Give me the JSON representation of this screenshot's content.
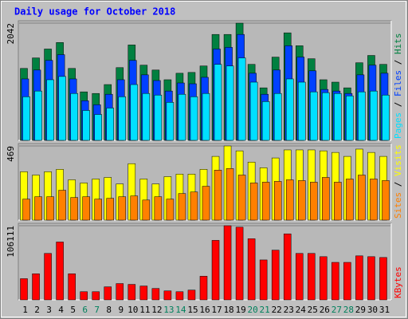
{
  "title": "Daily usage for October 2018",
  "chart_data": [
    {
      "type": "bar",
      "ylim": [
        0,
        2042
      ],
      "yticks": [
        2042
      ],
      "grid": true,
      "series": [
        {
          "name": "Hits",
          "color": "#008040",
          "values": [
            1253,
            1436,
            1591,
            1704,
            1253,
            845,
            817,
            972,
            1267,
            1662,
            1310,
            1225,
            1056,
            1169,
            1183,
            1296,
            1845,
            1845,
            2042,
            1324,
            915,
            1450,
            1873,
            1648,
            1422,
            1056,
            1014,
            915,
            1352,
            1479,
            1324
          ]
        },
        {
          "name": "Files",
          "color": "#0040FF",
          "values": [
            1070,
            1225,
            1394,
            1493,
            1070,
            690,
            620,
            803,
            1056,
            1394,
            1141,
            1042,
            859,
            1000,
            986,
            1098,
            1591,
            1620,
            1845,
            1169,
            803,
            1225,
            1648,
            1451,
            1211,
            887,
            859,
            817,
            1141,
            1310,
            1169
          ]
        },
        {
          "name": "Pages",
          "color": "#00E0FF",
          "values": [
            760,
            859,
            1056,
            1113,
            817,
            521,
            451,
            563,
            760,
            972,
            817,
            789,
            662,
            803,
            760,
            817,
            1324,
            1296,
            1436,
            1014,
            676,
            817,
            1070,
            1014,
            845,
            831,
            817,
            775,
            845,
            859,
            789
          ]
        }
      ]
    },
    {
      "type": "bar",
      "ylim": [
        0,
        469
      ],
      "yticks": [
        469
      ],
      "grid": true,
      "series": [
        {
          "name": "Visits",
          "color": "#FFFF00",
          "values": [
            306,
            285,
            306,
            321,
            255,
            235,
            260,
            270,
            229,
            357,
            260,
            229,
            275,
            291,
            291,
            321,
            403,
            469,
            438,
            367,
            331,
            393,
            444,
            444,
            444,
            438,
            428,
            403,
            449,
            428,
            403
          ]
        },
        {
          "name": "Sites",
          "color": "#FF8000",
          "values": [
            133,
            148,
            148,
            189,
            143,
            148,
            133,
            138,
            148,
            153,
            127,
            148,
            133,
            168,
            178,
            214,
            316,
            326,
            285,
            235,
            240,
            245,
            255,
            250,
            240,
            270,
            240,
            260,
            285,
            260,
            250
          ]
        }
      ]
    },
    {
      "type": "bar",
      "ylim": [
        0,
        106111
      ],
      "yticks": [
        106111
      ],
      "grid": true,
      "categories": [
        "1",
        "2",
        "3",
        "4",
        "5",
        "6",
        "7",
        "8",
        "9",
        "10",
        "11",
        "12",
        "13",
        "14",
        "15",
        "16",
        "17",
        "18",
        "19",
        "20",
        "21",
        "22",
        "23",
        "24",
        "25",
        "26",
        "27",
        "28",
        "29",
        "30",
        "31"
      ],
      "category_colors": [
        "#000000",
        "#000000",
        "#000000",
        "#000000",
        "#000000",
        "#00805C",
        "#00805C",
        "#000000",
        "#000000",
        "#000000",
        "#000000",
        "#000000",
        "#00805C",
        "#00805C",
        "#000000",
        "#000000",
        "#000000",
        "#000000",
        "#000000",
        "#00805C",
        "#00805C",
        "#000000",
        "#000000",
        "#000000",
        "#000000",
        "#000000",
        "#00805C",
        "#00805C",
        "#000000",
        "#000000",
        "#000000"
      ],
      "series": [
        {
          "name": "KBytes",
          "color": "#FF0000",
          "values": [
            30316,
            37312,
            66462,
            82786,
            37312,
            11660,
            11660,
            18656,
            23320,
            22154,
            19822,
            16324,
            12826,
            11660,
            13992,
            33814,
            85118,
            106111,
            104000,
            87450,
            57134,
            71126,
            94446,
            66462,
            66462,
            61798,
            53636,
            53636,
            62964,
            61798,
            60632
          ]
        }
      ]
    }
  ]
}
